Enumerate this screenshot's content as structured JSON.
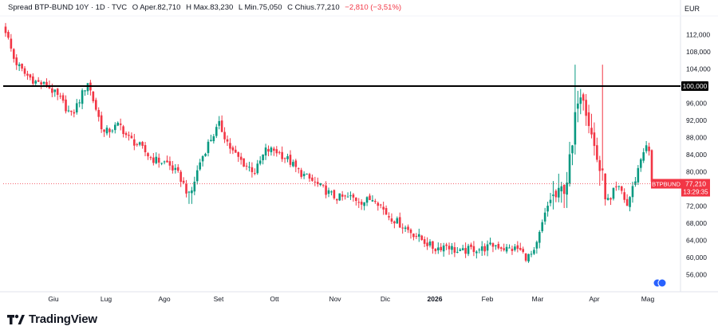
{
  "header": {
    "symbol": "Spread BTP-BUND 10Y · 1D · TVC",
    "open_label": "O",
    "open": "Aper.82,710",
    "high_label": "H",
    "high": "Max.83,230",
    "low_label": "L",
    "low": "Min.75,050",
    "close_label": "C",
    "close": "Chius.77,210",
    "change": "−2,810 (−3,51%)"
  },
  "currency": "EUR",
  "last_price_tag": {
    "symbol": "BTPBUND",
    "price": "77,210",
    "countdown": "13:29:35"
  },
  "level_line_label": "100,000",
  "brand": "TradingView",
  "colors": {
    "up": "#089981",
    "down": "#f23645",
    "level": "#000000"
  },
  "chart_data": {
    "type": "candlestick",
    "x_labels": [
      "Giu",
      "Lug",
      "Ago",
      "Set",
      "Ott",
      "Nov",
      "Dic",
      "2026",
      "Feb",
      "Mar",
      "Apr",
      "Mag"
    ],
    "y_ticks": [
      "56,000",
      "60,000",
      "64,000",
      "68,000",
      "72,000",
      "76,000",
      "80,000",
      "84,000",
      "88,000",
      "92,000",
      "96,000",
      "100,000",
      "104,000",
      "108,000",
      "112,000"
    ],
    "ylim": [
      52,
      116
    ],
    "horizontal_line": 100,
    "last_close": 77.21,
    "monthly_closes": [
      {
        "month": "Giu",
        "close": 100
      },
      {
        "month": "Lug",
        "close": 90
      },
      {
        "month": "Ago",
        "close": 80
      },
      {
        "month": "Set",
        "close": 88
      },
      {
        "month": "Ott",
        "close": 83
      },
      {
        "month": "Nov",
        "close": 74
      },
      {
        "month": "Dic",
        "close": 68
      },
      {
        "month": "2026",
        "close": 62
      },
      {
        "month": "Feb",
        "close": 62
      },
      {
        "month": "Mar",
        "close": 84
      },
      {
        "month": "Apr",
        "close": 78
      },
      {
        "month": "Mag",
        "close": 77.21
      }
    ]
  }
}
